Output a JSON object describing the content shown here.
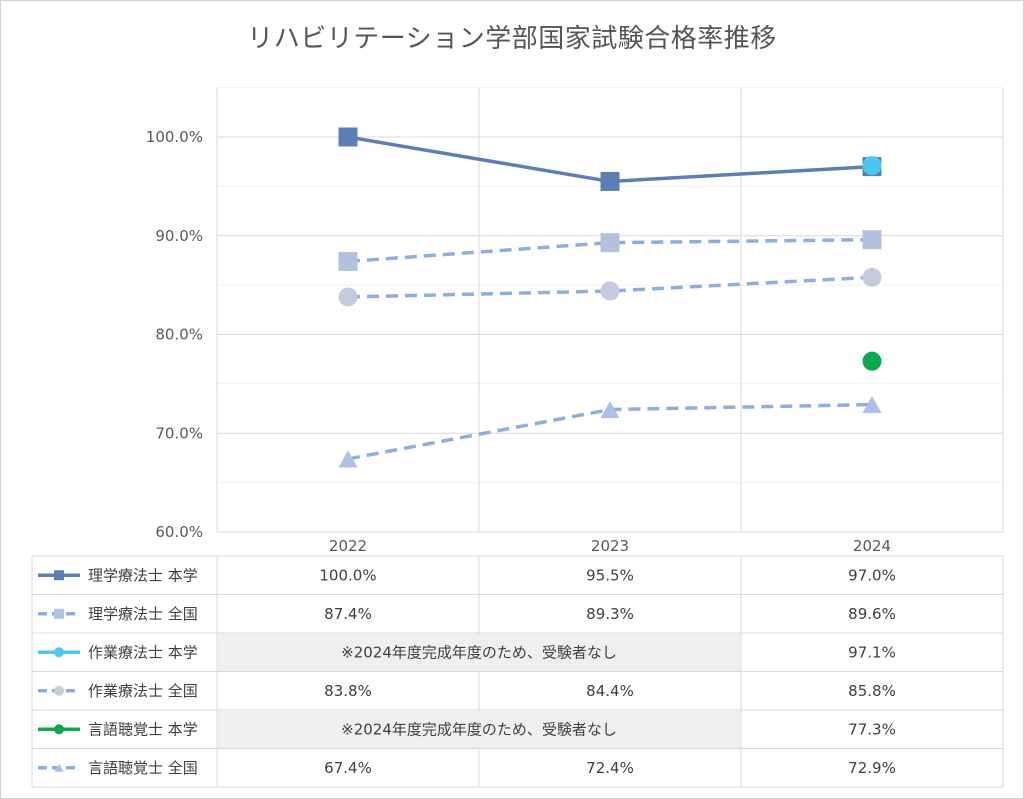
{
  "chart_data": {
    "type": "line",
    "title": "リハビリテーション学部国家試験合格率推移",
    "categories": [
      "2022",
      "2023",
      "2024"
    ],
    "ylim": [
      60,
      100
    ],
    "yticks": [
      "60.0%",
      "70.0%",
      "80.0%",
      "90.0%",
      "100.0%"
    ],
    "ytick_values": [
      60,
      70,
      80,
      90,
      100
    ],
    "grid": true,
    "legend_placement": "data-table-left",
    "series": [
      {
        "name": "理学療法士 本学",
        "values": [
          100.0,
          95.5,
          97.0
        ],
        "labels": [
          "100.0%",
          "95.5%",
          "97.0%"
        ],
        "color": "#5b7fb5",
        "dash": "solid",
        "marker": "square"
      },
      {
        "name": "理学療法士 全国",
        "values": [
          87.4,
          89.3,
          89.6
        ],
        "labels": [
          "87.4%",
          "89.3%",
          "89.6%"
        ],
        "color": "#8eaedc",
        "marker_color": "#b3c1df",
        "dash": "dashed",
        "marker": "square"
      },
      {
        "name": "作業療法士 本学",
        "values": [
          null,
          null,
          97.1
        ],
        "labels": [
          null,
          null,
          "97.1%"
        ],
        "color": "#4cc7f0",
        "dash": "solid",
        "marker": "circle"
      },
      {
        "name": "作業療法士 全国",
        "values": [
          83.8,
          84.4,
          85.8
        ],
        "labels": [
          "83.8%",
          "84.4%",
          "85.8%"
        ],
        "color": "#8eaedc",
        "marker_color": "#c3cbdd",
        "dash": "dashed",
        "marker": "circle"
      },
      {
        "name": "言語聴覚士 本学",
        "values": [
          null,
          null,
          77.3
        ],
        "labels": [
          null,
          null,
          "77.3%"
        ],
        "color": "#0aa84f",
        "dash": "solid",
        "marker": "circle"
      },
      {
        "name": "言語聴覚士 全国",
        "values": [
          67.4,
          72.4,
          72.9
        ],
        "labels": [
          "67.4%",
          "72.4%",
          "72.9%"
        ],
        "color": "#8eaedc",
        "marker_color": "#a9c1e8",
        "dash": "dashed",
        "marker": "triangle"
      }
    ],
    "merged_notes": [
      {
        "series_index": 2,
        "text": "※2024年度完成年度のため、受験者なし"
      },
      {
        "series_index": 4,
        "text": "※2024年度完成年度のため、受験者なし"
      }
    ]
  }
}
